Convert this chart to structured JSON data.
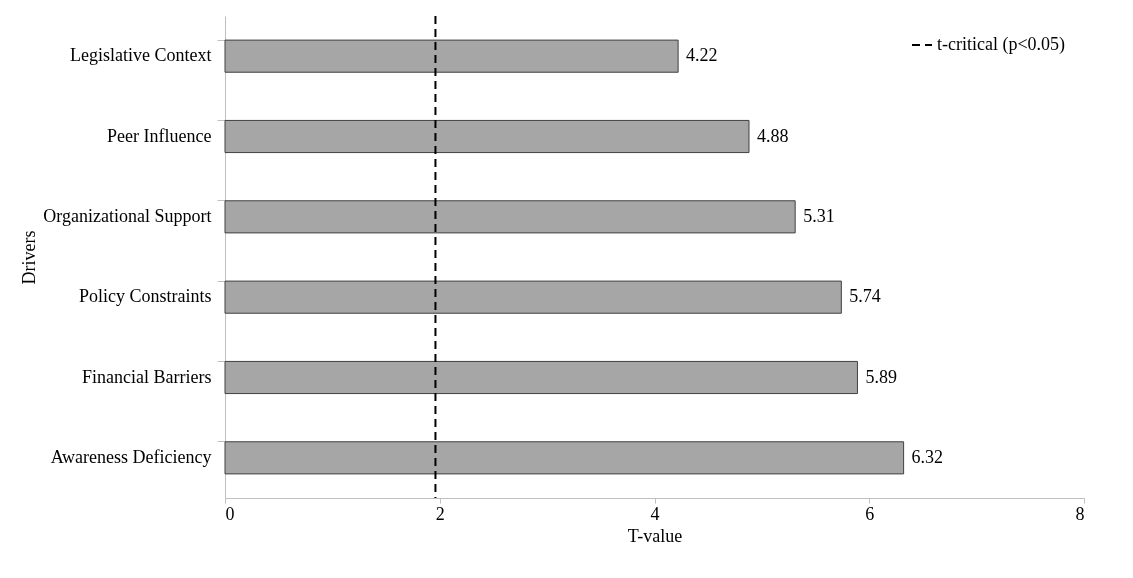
{
  "chart_data": {
    "type": "bar",
    "orientation": "horizontal",
    "xlabel": "T-value",
    "ylabel": "Drivers",
    "categories": [
      "Legislative Context",
      "Peer Influence",
      "Organizational Support",
      "Policy Constraints",
      "Financial Barriers",
      "Awareness Deficiency"
    ],
    "values": [
      4.22,
      4.88,
      5.31,
      5.74,
      5.89,
      6.32
    ],
    "color": "#a6a6a6",
    "xlim": [
      0,
      8
    ],
    "xticks": [
      0,
      2,
      4,
      6,
      8
    ],
    "data_labels": true,
    "grid": false,
    "legend": "top right",
    "ref_lines": [
      {
        "axis": "x",
        "value": 1.96,
        "label": "t-critical (p<0.05)",
        "color": "#000000",
        "line_style": "dashed"
      }
    ]
  }
}
